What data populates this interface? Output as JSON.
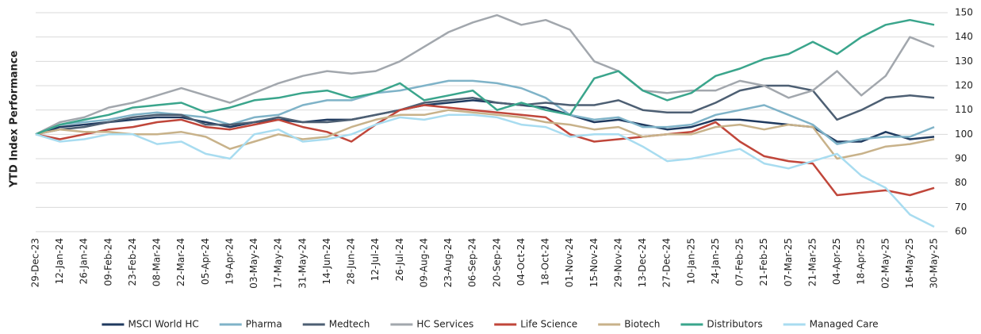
{
  "chart_data": {
    "type": "line",
    "y_label": "YTD Index Performance",
    "categories": [
      "29-Dec-23",
      "12-Jan-24",
      "26-Jan-24",
      "09-Feb-24",
      "23-Feb-24",
      "08-Mar-24",
      "22-Mar-24",
      "05-Apr-24",
      "19-Apr-24",
      "03-May-24",
      "17-May-24",
      "31-May-24",
      "14-Jun-24",
      "28-Jun-24",
      "12-Jul-24",
      "26-Jul-24",
      "09-Aug-24",
      "23-Aug-24",
      "06-Sep-24",
      "20-Sep-24",
      "04-Oct-24",
      "18-Oct-24",
      "01-Nov-24",
      "15-Nov-24",
      "29-Nov-24",
      "13-Dec-24",
      "27-Dec-24",
      "10-Jan-25",
      "24-Jan-25",
      "07-Feb-25",
      "21-Feb-25",
      "07-Mar-25",
      "21-Mar-25",
      "04-Apr-25",
      "18-Apr-25",
      "02-May-25",
      "16-May-25",
      "30-May-25"
    ],
    "series": [
      {
        "name": "MSCI World HC",
        "color": "#1f3a5f",
        "values": [
          100,
          103,
          104,
          105,
          106,
          107,
          107,
          105,
          103,
          105,
          106,
          105,
          106,
          106,
          108,
          110,
          112,
          113,
          114,
          113,
          112,
          111,
          108,
          105,
          106,
          104,
          102,
          103,
          106,
          106,
          105,
          104,
          103,
          97,
          97,
          101,
          98,
          99
        ]
      },
      {
        "name": "Pharma",
        "color": "#7fb3c8",
        "values": [
          100,
          104,
          105,
          106,
          108,
          109,
          108,
          107,
          104,
          107,
          108,
          112,
          114,
          114,
          117,
          118,
          120,
          122,
          122,
          121,
          119,
          115,
          108,
          106,
          107,
          103,
          103,
          104,
          108,
          110,
          112,
          108,
          104,
          96,
          98,
          99,
          99,
          103
        ]
      },
      {
        "name": "Medtech",
        "color": "#4d5f73",
        "values": [
          100,
          102,
          103,
          105,
          107,
          108,
          108,
          104,
          104,
          105,
          107,
          105,
          105,
          106,
          108,
          110,
          113,
          114,
          115,
          113,
          112,
          113,
          112,
          112,
          114,
          110,
          109,
          109,
          113,
          118,
          120,
          120,
          118,
          106,
          110,
          115,
          116,
          115
        ]
      },
      {
        "name": "HC Services",
        "color": "#a2a7ad",
        "values": [
          100,
          105,
          107,
          111,
          113,
          116,
          119,
          116,
          113,
          117,
          121,
          124,
          126,
          125,
          126,
          130,
          136,
          142,
          146,
          149,
          145,
          147,
          143,
          130,
          126,
          118,
          117,
          118,
          118,
          122,
          120,
          115,
          118,
          126,
          116,
          124,
          140,
          136
        ]
      },
      {
        "name": "Life Science",
        "color": "#c0463a",
        "values": [
          100,
          98,
          100,
          102,
          103,
          105,
          106,
          103,
          102,
          104,
          106,
          103,
          101,
          97,
          104,
          110,
          112,
          111,
          110,
          109,
          108,
          107,
          100,
          97,
          98,
          99,
          100,
          101,
          105,
          97,
          91,
          89,
          88,
          75,
          76,
          77,
          75,
          78
        ]
      },
      {
        "name": "Biotech",
        "color": "#c8b28a",
        "values": [
          100,
          102,
          101,
          101,
          100,
          100,
          101,
          99,
          94,
          97,
          100,
          98,
          99,
          103,
          106,
          108,
          108,
          110,
          109,
          108,
          107,
          105,
          104,
          102,
          103,
          99,
          100,
          100,
          103,
          104,
          102,
          104,
          103,
          90,
          92,
          95,
          96,
          98
        ]
      },
      {
        "name": "Distributors",
        "color": "#3aa58c",
        "values": [
          100,
          104,
          106,
          108,
          111,
          112,
          113,
          109,
          111,
          114,
          115,
          117,
          118,
          115,
          117,
          121,
          114,
          116,
          118,
          110,
          113,
          110,
          108,
          123,
          126,
          118,
          114,
          117,
          124,
          127,
          131,
          133,
          138,
          133,
          140,
          145,
          147,
          145
        ]
      },
      {
        "name": "Managed Care",
        "color": "#a8dcf0",
        "values": [
          100,
          97,
          98,
          100,
          100,
          96,
          97,
          92,
          90,
          100,
          102,
          97,
          98,
          100,
          104,
          107,
          106,
          108,
          108,
          107,
          104,
          103,
          99,
          100,
          100,
          95,
          89,
          90,
          92,
          94,
          88,
          86,
          89,
          92,
          83,
          78,
          67,
          62
        ]
      }
    ],
    "ylim": [
      60,
      150
    ],
    "yticks": [
      60,
      70,
      80,
      90,
      100,
      110,
      120,
      130,
      140,
      150
    ],
    "grid": true,
    "legend": "bottom"
  }
}
